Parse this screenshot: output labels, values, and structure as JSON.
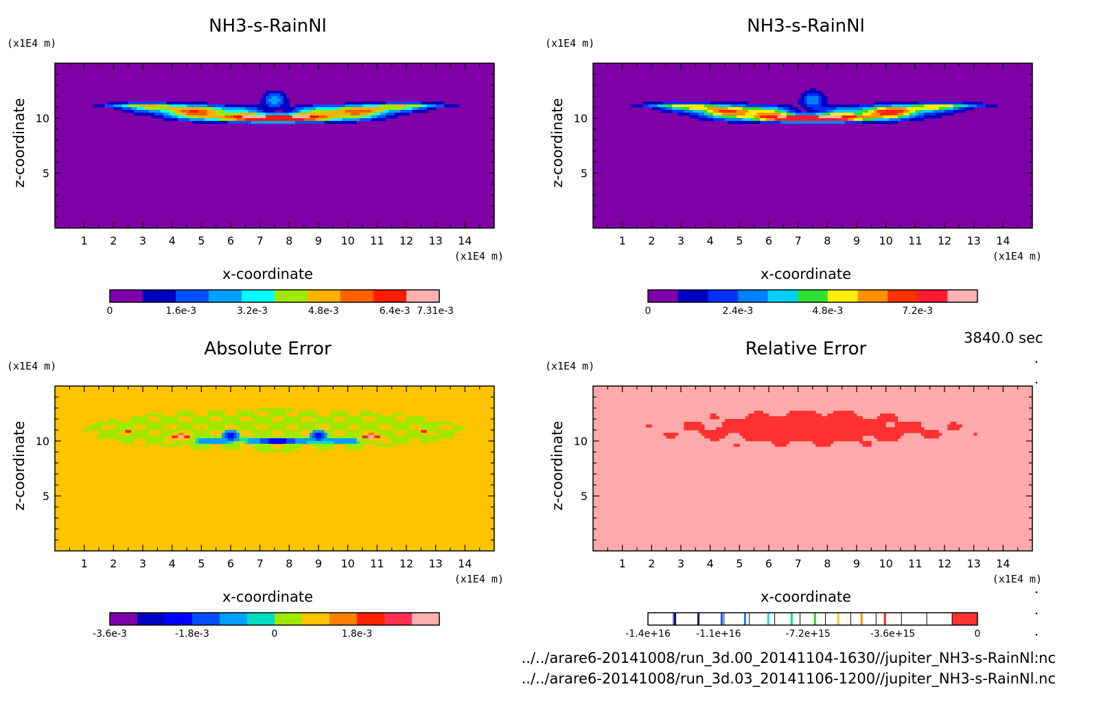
{
  "time_label": "3840.0 sec",
  "file_paths": [
    "../../arare6-20141008/run_3d.00_20141104-1630//jupiter_NH3-s-RainNl.nc",
    "../../arare6-20141008/run_3d.03_20141106-1200//jupiter_NH3-s-RainNl.nc"
  ],
  "chart_data": [
    {
      "type": "heatmap",
      "title": "NH3-s-RainNl",
      "xlabel": "x-coordinate",
      "ylabel": "z-coordinate",
      "x_unit": "(x1E4 m)",
      "y_unit": "(x1E4 m)",
      "xlim": [
        0,
        15
      ],
      "ylim": [
        0,
        15
      ],
      "x_ticks": [
        1,
        2,
        3,
        4,
        5,
        6,
        7,
        8,
        9,
        10,
        11,
        12,
        13,
        14
      ],
      "y_ticks": [
        5,
        10
      ],
      "background_color": "#8000a8",
      "field": "cloud",
      "colorbar": {
        "colors": [
          "#7f00aa",
          "#0000c0",
          "#0050ff",
          "#00a0ff",
          "#00ffff",
          "#a0e800",
          "#ffb000",
          "#ff6000",
          "#ff1a00",
          "#ffb0b0"
        ],
        "tick_labels": [
          "0",
          "1.6e-3",
          "3.2e-3",
          "4.8e-3",
          "6.4e-3",
          "7.31e-3"
        ],
        "tick_values": [
          0,
          0.0016,
          0.0032,
          0.0048,
          0.0064,
          0.00731
        ],
        "range": [
          0,
          0.0074
        ]
      }
    },
    {
      "type": "heatmap",
      "title": "NH3-s-RainNl",
      "xlabel": "x-coordinate",
      "ylabel": "z-coordinate",
      "x_unit": "(x1E4 m)",
      "y_unit": "(x1E4 m)",
      "xlim": [
        0,
        15
      ],
      "ylim": [
        0,
        15
      ],
      "x_ticks": [
        1,
        2,
        3,
        4,
        5,
        6,
        7,
        8,
        9,
        10,
        11,
        12,
        13,
        14
      ],
      "y_ticks": [
        5,
        10
      ],
      "background_color": "#8000a8",
      "field": "cloud",
      "colorbar": {
        "colors": [
          "#7f00aa",
          "#0000c0",
          "#0030ff",
          "#0080ff",
          "#00d0ff",
          "#30e030",
          "#ffee00",
          "#ff9000",
          "#ff3000",
          "#ff1a30",
          "#ffb0b0"
        ],
        "tick_labels": [
          "0",
          "2.4e-3",
          "4.8e-3",
          "7.2e-3"
        ],
        "tick_values": [
          0,
          0.0024,
          0.0048,
          0.0072
        ],
        "range": [
          0,
          0.0088
        ]
      }
    },
    {
      "type": "heatmap",
      "title": "Absolute Error",
      "xlabel": "x-coordinate",
      "ylabel": "z-coordinate",
      "x_unit": "(x1E4 m)",
      "y_unit": "(x1E4 m)",
      "xlim": [
        0,
        15
      ],
      "ylim": [
        0,
        15
      ],
      "x_ticks": [
        1,
        2,
        3,
        4,
        5,
        6,
        7,
        8,
        9,
        10,
        11,
        12,
        13,
        14
      ],
      "y_ticks": [
        5,
        10
      ],
      "background_color": "#ffc400",
      "field": "abs_error",
      "colorbar": {
        "colors": [
          "#7f00aa",
          "#0000c0",
          "#0000ff",
          "#0050ff",
          "#00a0ff",
          "#00e0c0",
          "#a0e800",
          "#ffc400",
          "#ff8000",
          "#ff2000",
          "#ff3050",
          "#ffb0b0"
        ],
        "tick_labels": [
          "-3.6e-3",
          "-1.8e-3",
          "0",
          "1.8e-3"
        ],
        "tick_values": [
          -0.0036,
          -0.0018,
          0,
          0.0018
        ],
        "range": [
          -0.0036,
          0.0036
        ]
      }
    },
    {
      "type": "heatmap",
      "title": "Relative Error",
      "xlabel": "x-coordinate",
      "ylabel": "z-coordinate",
      "x_unit": "(x1E4 m)",
      "y_unit": "(x1E4 m)",
      "xlim": [
        0,
        15
      ],
      "ylim": [
        0,
        15
      ],
      "x_ticks": [
        1,
        2,
        3,
        4,
        5,
        6,
        7,
        8,
        9,
        10,
        11,
        12,
        13,
        14
      ],
      "y_ticks": [
        5,
        10
      ],
      "background_color": "#ffaaaa",
      "field": "rel_error",
      "colorbar": {
        "colors": [
          "#ffffff",
          "#ffffff",
          "#ffffff",
          "#ffffff",
          "#ffffff",
          "#ffffff",
          "#ffffff",
          "#ffffff",
          "#ffffff",
          "#ffffff",
          "#ffffff",
          "#ffffff",
          "#ff3030"
        ],
        "marker_colors": [
          "#0000c0",
          "#0000c0",
          "#0050ff",
          "#0080ff",
          "#00e0ff",
          "#00e080",
          "#30d030",
          "#ffc400",
          "#ff9000",
          "#ff2000"
        ],
        "tick_labels": [
          "-1.4e+16",
          "-1.1e+16",
          "-7.2e+15",
          "-3.6e+15",
          "0"
        ],
        "tick_values": [
          -1.4e+16,
          -1.1e+16,
          -7200000000000000.0,
          -3600000000000000.0,
          0
        ],
        "range": [
          -1.4e+16,
          0
        ]
      }
    }
  ]
}
